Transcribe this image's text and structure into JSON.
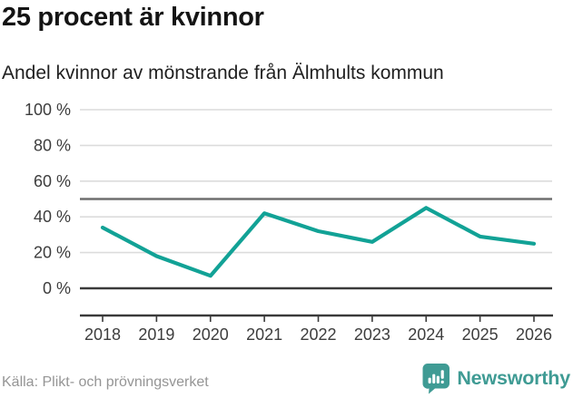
{
  "title": "25 procent är kvinnor",
  "subtitle": "Andel kvinnor av mönstrande från Älmhults kommun",
  "source": "Källa: Plikt- och prövningsverket",
  "brand": {
    "name": "Newsworthy"
  },
  "colors": {
    "line": "#12a296",
    "brand": "#3f9b94",
    "grid": "#dcdcdc",
    "benchmark": "#6f6f6f",
    "axis": "#3a3a3a",
    "tick_text": "#3d3d3d"
  },
  "chart_data": {
    "type": "line",
    "title": "25 procent är kvinnor",
    "subtitle": "Andel kvinnor av mönstrande från Älmhults kommun",
    "x": [
      "2018",
      "2019",
      "2020",
      "2021",
      "2022",
      "2023",
      "2024",
      "2025",
      "2026"
    ],
    "series": [
      {
        "name": "Andel kvinnor av mönstrande",
        "values": [
          34,
          18,
          7,
          42,
          32,
          26,
          45,
          29,
          25
        ]
      }
    ],
    "ylim": [
      0,
      100
    ],
    "y_ticks": [
      {
        "value": 0,
        "label": "0 %"
      },
      {
        "value": 20,
        "label": "20 %"
      },
      {
        "value": 40,
        "label": "40 %"
      },
      {
        "value": 60,
        "label": "60 %"
      },
      {
        "value": 80,
        "label": "80 %"
      },
      {
        "value": 100,
        "label": "100 %"
      }
    ],
    "benchmark": 50,
    "grid": "horizontal",
    "legend": "none"
  }
}
